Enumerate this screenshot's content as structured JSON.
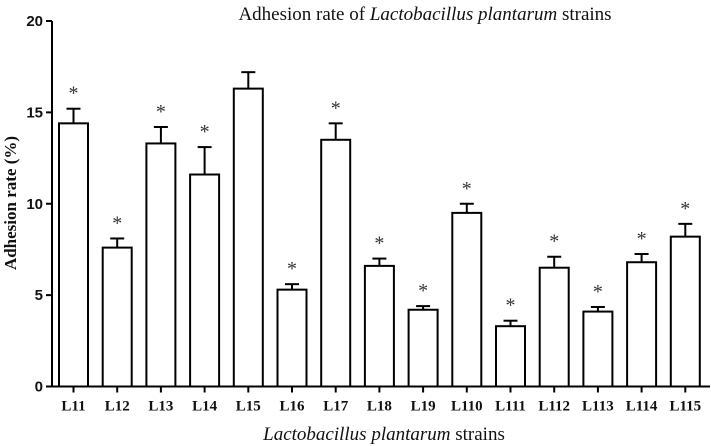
{
  "chart_data": {
    "type": "bar",
    "title_parts": [
      "Adhesion rate of ",
      "Lactobacillus plantarum",
      " strains"
    ],
    "xlabel_parts": [
      "Lactobacillus plantarum",
      " strains"
    ],
    "ylabel": "Adhesion rate (%)",
    "ylim": [
      0,
      20
    ],
    "yticks": [
      0,
      5,
      10,
      15,
      20
    ],
    "grid": false,
    "categories": [
      "L11",
      "L12",
      "L13",
      "L14",
      "L15",
      "L16",
      "L17",
      "L18",
      "L19",
      "L110",
      "L111",
      "L112",
      "L113",
      "L114",
      "L115"
    ],
    "values": [
      14.4,
      7.6,
      13.3,
      11.6,
      16.3,
      5.3,
      13.5,
      6.6,
      4.2,
      9.5,
      3.3,
      6.5,
      4.1,
      6.8,
      8.2
    ],
    "error": [
      0.8,
      0.5,
      0.9,
      1.5,
      0.9,
      0.3,
      0.9,
      0.4,
      0.2,
      0.5,
      0.3,
      0.6,
      0.25,
      0.45,
      0.7
    ],
    "significance": [
      "*",
      "*",
      "*",
      "*",
      "",
      "*",
      "*",
      "*",
      "*",
      "*",
      "*",
      "*",
      "*",
      "*",
      "*"
    ],
    "bar_fill": "#ffffff",
    "bar_stroke": "#000000"
  }
}
